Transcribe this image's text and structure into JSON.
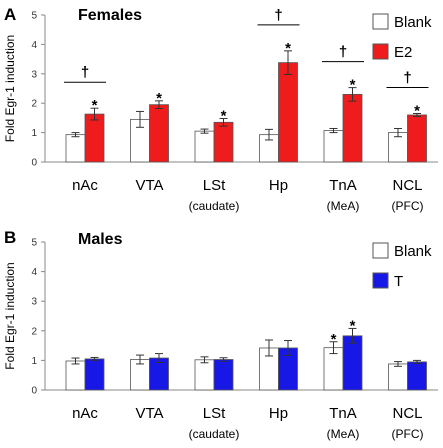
{
  "chart_data": [
    {
      "panel": "A",
      "type": "bar",
      "title": "Females",
      "ylabel": "Fold Egr-1 induction",
      "ylim": [
        0,
        5
      ],
      "yticks": [
        "0",
        "1",
        "2",
        "3",
        "4",
        "5"
      ],
      "categories": [
        "nAc",
        "VTA",
        "LSt",
        "Hp",
        "TnA",
        "NCL"
      ],
      "sublabels": [
        "",
        "",
        "(caudate)",
        "",
        "(MeA)",
        "(PFC)"
      ],
      "legend_position": "top-right",
      "series": [
        {
          "name": "Blank",
          "color": "#ffffff",
          "values": [
            0.93,
            1.45,
            1.05,
            0.93,
            1.07,
            1.0
          ],
          "errors": [
            0.07,
            0.27,
            0.07,
            0.18,
            0.07,
            0.14
          ]
        },
        {
          "name": "E2",
          "color": "#ee1c1c",
          "values": [
            1.63,
            1.95,
            1.35,
            3.38,
            2.3,
            1.6
          ],
          "errors": [
            0.2,
            0.13,
            0.13,
            0.4,
            0.23,
            0.05
          ]
        }
      ],
      "significance": {
        "star": "*",
        "dagger": "†",
        "star_on": [
          [
            1,
            0
          ],
          [
            1,
            1
          ],
          [
            1,
            2
          ],
          [
            1,
            3
          ],
          [
            1,
            4
          ],
          [
            1,
            5
          ]
        ],
        "dagger_on": [
          0,
          3,
          4,
          5
        ]
      }
    },
    {
      "panel": "B",
      "type": "bar",
      "title": "Males",
      "ylabel": "Fold Egr-1 induction",
      "ylim": [
        0,
        5
      ],
      "yticks": [
        "0",
        "1",
        "2",
        "3",
        "4",
        "5"
      ],
      "categories": [
        "nAc",
        "VTA",
        "LSt",
        "Hp",
        "TnA",
        "NCL"
      ],
      "sublabels": [
        "",
        "",
        "(caudate)",
        "",
        "(MeA)",
        "(PFC)"
      ],
      "legend_position": "top-right",
      "series": [
        {
          "name": "Blank",
          "color": "#ffffff",
          "values": [
            0.98,
            1.03,
            1.02,
            1.42,
            1.43,
            0.88
          ],
          "errors": [
            0.1,
            0.15,
            0.1,
            0.27,
            0.2,
            0.08
          ]
        },
        {
          "name": "T",
          "color": "#1818e6",
          "values": [
            1.05,
            1.08,
            1.03,
            1.42,
            1.83,
            0.95
          ],
          "errors": [
            0.05,
            0.15,
            0.06,
            0.25,
            0.25,
            0.05
          ]
        }
      ],
      "significance": {
        "star": "*",
        "dagger": "†",
        "star_on": [
          [
            0,
            4
          ],
          [
            1,
            4
          ]
        ],
        "dagger_on": []
      }
    }
  ]
}
